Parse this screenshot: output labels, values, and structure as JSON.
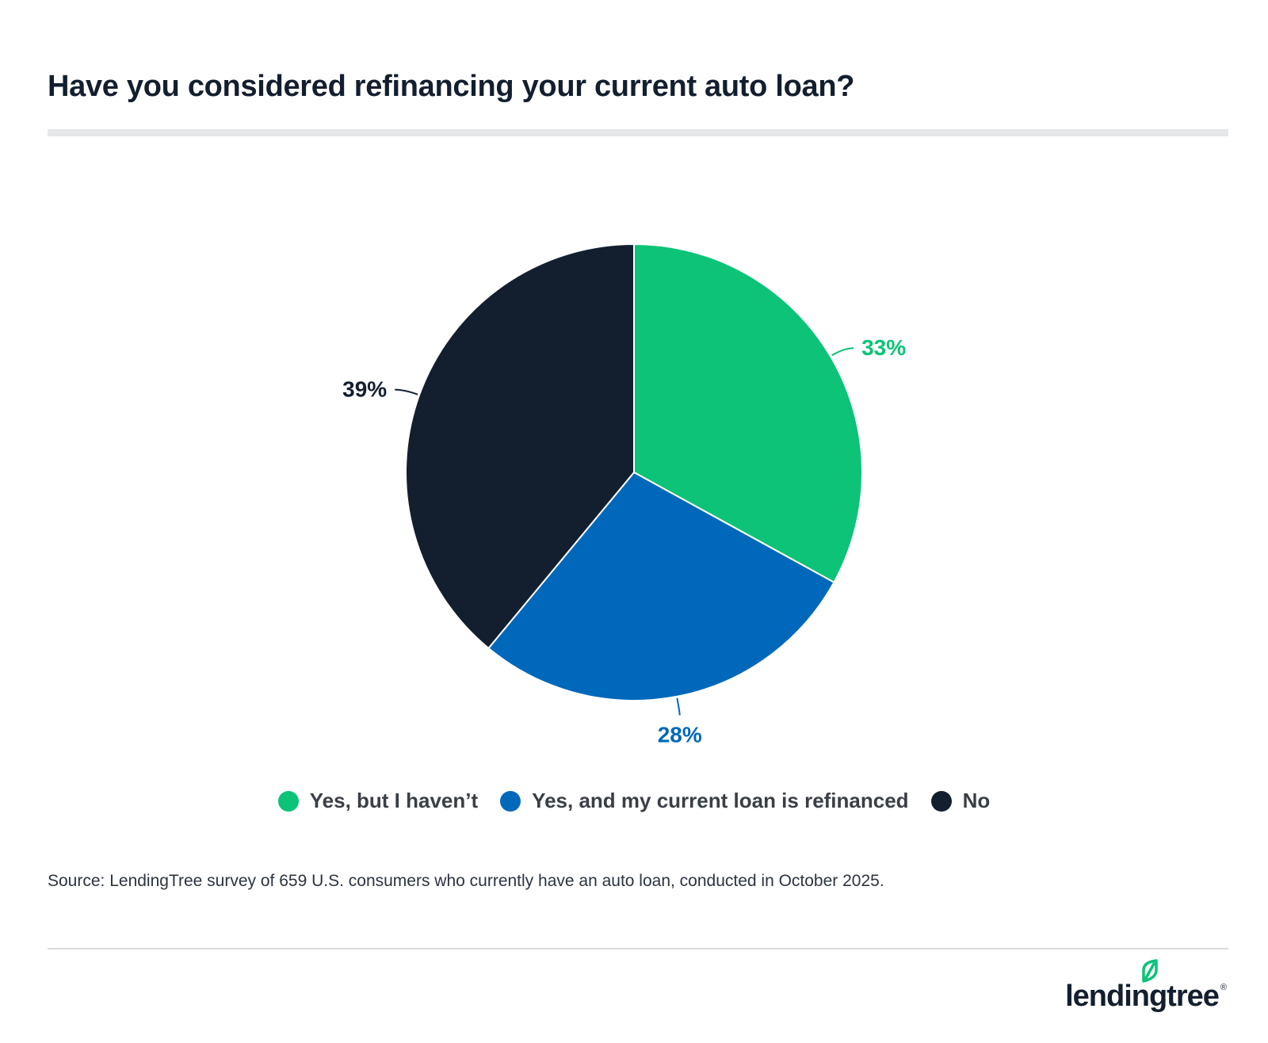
{
  "title": "Have you considered refinancing your current auto loan?",
  "source": "Source: LendingTree survey of 659 U.S. consumers who currently have an auto loan, conducted in October 2025.",
  "logo": {
    "text": "lendingtree",
    "registered": "®",
    "leaf_color": "#0cc377"
  },
  "chart_data": {
    "type": "pie",
    "title": "Have you considered refinancing your current auto loan?",
    "categories": [
      "Yes, but I haven’t",
      "Yes, and my current loan is refinanced",
      "No"
    ],
    "values": [
      33,
      28,
      39
    ],
    "labels": [
      "33%",
      "28%",
      "39%"
    ],
    "colors": [
      "#0cc377",
      "#0068bb",
      "#131f2f"
    ],
    "start_angle": "12 o'clock, clockwise",
    "legend_position": "bottom-center"
  }
}
